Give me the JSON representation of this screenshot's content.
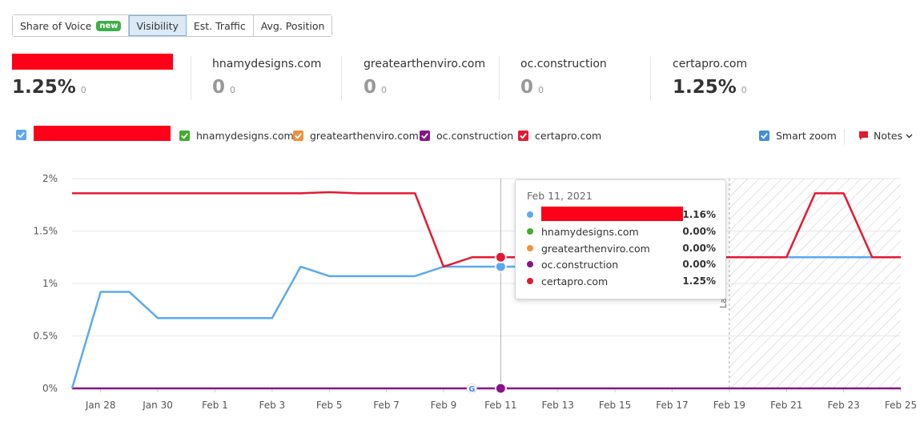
{
  "tabs": [
    {
      "label": "Share of Voice",
      "badge": "new",
      "active": false
    },
    {
      "label": "Visibility",
      "active": true
    },
    {
      "label": "Est. Traffic",
      "active": false
    },
    {
      "label": "Avg. Position",
      "active": false
    }
  ],
  "metrics": [
    {
      "name": "",
      "value": "1.25%",
      "delta": "0"
    },
    {
      "name": "hnamydesigns.com",
      "value": "0",
      "delta": "0"
    },
    {
      "name": "greatearthenviro.com",
      "value": "0",
      "delta": "0"
    },
    {
      "name": "oc.construction",
      "value": "0",
      "delta": "0"
    },
    {
      "name": "certapro.com",
      "value": "1.25%",
      "delta": "0"
    }
  ],
  "legend": {
    "items": [
      {
        "label": "",
        "color": "#5aaaf0"
      },
      {
        "label": "hnamydesigns.com",
        "color": "#3fae2a"
      },
      {
        "label": "greatearthenviro.com",
        "color": "#f0913c"
      },
      {
        "label": "oc.construction",
        "color": "#8a1487"
      },
      {
        "label": "certapro.com",
        "color": "#e51932"
      }
    ],
    "smart_zoom": "Smart zoom",
    "notes": "Notes"
  },
  "chart_data": {
    "type": "line",
    "x_ticks": [
      "Jan 28",
      "Jan 30",
      "Feb 1",
      "Feb 3",
      "Feb 5",
      "Feb 7",
      "Feb 9",
      "Feb 11",
      "Feb 13",
      "Feb 15",
      "Feb 17",
      "Feb 19",
      "Feb 21",
      "Feb 23",
      "Feb 25"
    ],
    "y_ticks": [
      "0%",
      "0.5%",
      "1%",
      "1.5%",
      "2%"
    ],
    "ylim": [
      0,
      2
    ],
    "x": [
      "Jan 27",
      "Jan 28",
      "Jan 29",
      "Jan 30",
      "Jan 31",
      "Feb 1",
      "Feb 2",
      "Feb 3",
      "Feb 4",
      "Feb 5",
      "Feb 6",
      "Feb 7",
      "Feb 8",
      "Feb 9",
      "Feb 10",
      "Feb 11",
      "Feb 12",
      "Feb 13",
      "Feb 14",
      "Feb 15",
      "Feb 16",
      "Feb 17",
      "Feb 18",
      "Feb 19",
      "Feb 20",
      "Feb 21",
      "Feb 22",
      "Feb 23",
      "Feb 24",
      "Feb 25"
    ],
    "series": [
      {
        "name": "",
        "color": "#5aaaf0",
        "values": [
          0,
          0.92,
          0.92,
          0.67,
          0.67,
          0.67,
          0.67,
          0.67,
          1.16,
          1.07,
          1.07,
          1.07,
          1.07,
          1.16,
          1.16,
          1.16,
          1.16,
          1.25,
          1.25,
          1.25,
          1.25,
          1.25,
          1.25,
          1.25,
          1.25,
          1.25,
          1.25,
          1.25,
          1.25,
          1.25
        ]
      },
      {
        "name": "certapro.com",
        "color": "#e51932",
        "values": [
          1.86,
          1.86,
          1.86,
          1.86,
          1.86,
          1.86,
          1.86,
          1.86,
          1.86,
          1.87,
          1.86,
          1.86,
          1.86,
          1.16,
          1.25,
          1.25,
          1.25,
          1.25,
          1.25,
          1.25,
          1.25,
          1.25,
          1.25,
          1.25,
          1.25,
          1.25,
          1.86,
          1.86,
          1.25,
          1.25
        ]
      },
      {
        "name": "oc.construction",
        "color": "#8a1487",
        "values": [
          0,
          0,
          0,
          0,
          0,
          0,
          0,
          0,
          0,
          0,
          0,
          0,
          0,
          0,
          0,
          0,
          0,
          0,
          0,
          0,
          0,
          0,
          0,
          0,
          0,
          0,
          0,
          0,
          0,
          0
        ]
      }
    ],
    "highlight_index": 15,
    "shaded_from_index": 23,
    "shaded_label": "La",
    "grid": true
  },
  "tooltip": {
    "date": "Feb 11, 2021",
    "rows": [
      {
        "name": "",
        "value": "1.16%",
        "color": "#5aaaf0"
      },
      {
        "name": "hnamydesigns.com",
        "value": "0.00%",
        "color": "#3fae2a"
      },
      {
        "name": "greatearthenviro.com",
        "value": "0.00%",
        "color": "#f0913c"
      },
      {
        "name": "oc.construction",
        "value": "0.00%",
        "color": "#8a1487"
      },
      {
        "name": "certapro.com",
        "value": "1.25%",
        "color": "#e51932"
      }
    ]
  }
}
